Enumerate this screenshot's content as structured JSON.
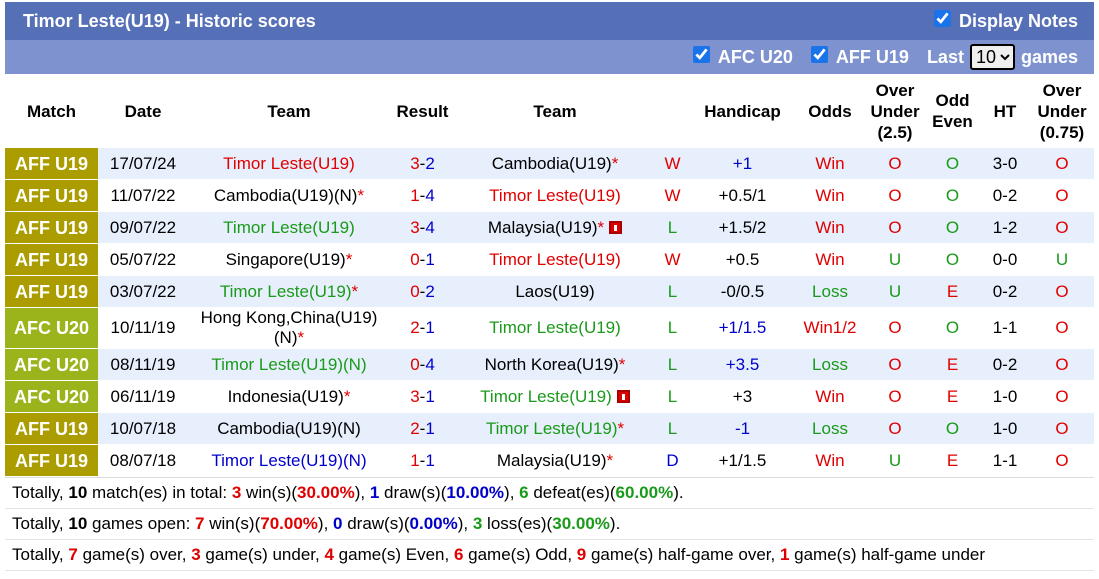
{
  "header": {
    "title": "Timor Leste(U19) - Historic scores",
    "display_notes": "Display Notes",
    "display_notes_checked": true,
    "filters": [
      {
        "label": "AFC U20",
        "checked": true
      },
      {
        "label": "AFF U19",
        "checked": true
      }
    ],
    "last": "Last",
    "games_selected": "10",
    "games": "games"
  },
  "table": {
    "columns": [
      "Match",
      "Date",
      "Team",
      "Result",
      "Team",
      "Handicap",
      "Odds",
      "Over Under (2.5)",
      "Odd Even",
      "HT",
      "Over Under (0.75)"
    ],
    "rows": [
      {
        "match": "AFF U19",
        "match_bg": "#ab9d00",
        "date": "17/07/24",
        "home": "Timor Leste(U19)",
        "home_color": "#e00000",
        "home_score": 3,
        "away_score": 2,
        "away": "Cambodia(U19)",
        "away_color": "#000000",
        "away_mark": "*",
        "outcome": "W",
        "outcome_color": "#e00000",
        "handicap": "+1",
        "handicap_color": "#0000cc",
        "odds": "Win",
        "odds_color": "#e00000",
        "ou": "O",
        "ou_color": "#e00000",
        "oe": "O",
        "oe_color": "#1a9a1a",
        "ht": "3-0",
        "ou2": "O",
        "ou2_color": "#e00000"
      },
      {
        "match": "AFF U19",
        "match_bg": "#ab9d00",
        "date": "11/07/22",
        "home": "Cambodia(U19)(N)",
        "home_color": "#000000",
        "home_mark": "*",
        "home_score": 1,
        "away_score": 4,
        "away": "Timor Leste(U19)",
        "away_color": "#e00000",
        "outcome": "W",
        "outcome_color": "#e00000",
        "handicap": "+0.5/1",
        "handicap_color": "#000000",
        "odds": "Win",
        "odds_color": "#e00000",
        "ou": "O",
        "ou_color": "#e00000",
        "oe": "O",
        "oe_color": "#1a9a1a",
        "ht": "0-2",
        "ou2": "O",
        "ou2_color": "#e00000"
      },
      {
        "match": "AFF U19",
        "match_bg": "#ab9d00",
        "date": "09/07/22",
        "home": "Timor Leste(U19)",
        "home_color": "#1a9a1a",
        "home_score": 3,
        "away_score": 4,
        "away": "Malaysia(U19)",
        "away_color": "#000000",
        "away_mark": "*",
        "away_card": true,
        "outcome": "L",
        "outcome_color": "#1a9a1a",
        "handicap": "+1.5/2",
        "handicap_color": "#000000",
        "odds": "Win",
        "odds_color": "#e00000",
        "ou": "O",
        "ou_color": "#e00000",
        "oe": "O",
        "oe_color": "#1a9a1a",
        "ht": "1-2",
        "ou2": "O",
        "ou2_color": "#e00000"
      },
      {
        "match": "AFF U19",
        "match_bg": "#ab9d00",
        "date": "05/07/22",
        "home": "Singapore(U19)",
        "home_color": "#000000",
        "home_mark": "*",
        "home_score": 0,
        "away_score": 1,
        "away": "Timor Leste(U19)",
        "away_color": "#e00000",
        "outcome": "W",
        "outcome_color": "#e00000",
        "handicap": "+0.5",
        "handicap_color": "#000000",
        "odds": "Win",
        "odds_color": "#e00000",
        "ou": "U",
        "ou_color": "#1a9a1a",
        "oe": "O",
        "oe_color": "#1a9a1a",
        "ht": "0-0",
        "ou2": "U",
        "ou2_color": "#1a9a1a"
      },
      {
        "match": "AFF U19",
        "match_bg": "#ab9d00",
        "date": "03/07/22",
        "home": "Timor Leste(U19)",
        "home_color": "#1a9a1a",
        "home_mark": "*",
        "home_score": 0,
        "away_score": 2,
        "away": "Laos(U19)",
        "away_color": "#000000",
        "outcome": "L",
        "outcome_color": "#1a9a1a",
        "handicap": "-0/0.5",
        "handicap_color": "#000000",
        "odds": "Loss",
        "odds_color": "#1a9a1a",
        "ou": "U",
        "ou_color": "#1a9a1a",
        "oe": "E",
        "oe_color": "#e00000",
        "ht": "0-2",
        "ou2": "O",
        "ou2_color": "#e00000"
      },
      {
        "match": "AFC U20",
        "match_bg": "#9cb41c",
        "date": "10/11/19",
        "home": "Hong Kong,China(U19)(N)",
        "home_color": "#000000",
        "home_mark": "*",
        "home_score": 2,
        "away_score": 1,
        "away": "Timor Leste(U19)",
        "away_color": "#1a9a1a",
        "outcome": "L",
        "outcome_color": "#1a9a1a",
        "handicap": "+1/1.5",
        "handicap_color": "#0000cc",
        "odds": "Win1/2",
        "odds_color": "#e00000",
        "ou": "O",
        "ou_color": "#e00000",
        "oe": "O",
        "oe_color": "#1a9a1a",
        "ht": "1-1",
        "ou2": "O",
        "ou2_color": "#e00000"
      },
      {
        "match": "AFC U20",
        "match_bg": "#9cb41c",
        "date": "08/11/19",
        "home": "Timor Leste(U19)(N)",
        "home_color": "#1a9a1a",
        "home_score": 0,
        "away_score": 4,
        "away": "North Korea(U19)",
        "away_color": "#000000",
        "away_mark": "*",
        "outcome": "L",
        "outcome_color": "#1a9a1a",
        "handicap": "+3.5",
        "handicap_color": "#0000cc",
        "odds": "Loss",
        "odds_color": "#1a9a1a",
        "ou": "O",
        "ou_color": "#e00000",
        "oe": "E",
        "oe_color": "#e00000",
        "ht": "0-2",
        "ou2": "O",
        "ou2_color": "#e00000"
      },
      {
        "match": "AFC U20",
        "match_bg": "#9cb41c",
        "date": "06/11/19",
        "home": "Indonesia(U19)",
        "home_color": "#000000",
        "home_mark": "*",
        "home_score": 3,
        "away_score": 1,
        "away": "Timor Leste(U19)",
        "away_color": "#1a9a1a",
        "away_card": true,
        "outcome": "L",
        "outcome_color": "#1a9a1a",
        "handicap": "+3",
        "handicap_color": "#000000",
        "odds": "Win",
        "odds_color": "#e00000",
        "ou": "O",
        "ou_color": "#e00000",
        "oe": "E",
        "oe_color": "#e00000",
        "ht": "1-0",
        "ou2": "O",
        "ou2_color": "#e00000"
      },
      {
        "match": "AFF U19",
        "match_bg": "#ab9d00",
        "date": "10/07/18",
        "home": "Cambodia(U19)(N)",
        "home_color": "#000000",
        "home_score": 2,
        "away_score": 1,
        "away": "Timor Leste(U19)",
        "away_color": "#1a9a1a",
        "away_mark": "*",
        "outcome": "L",
        "outcome_color": "#1a9a1a",
        "handicap": "-1",
        "handicap_color": "#0000cc",
        "odds": "Loss",
        "odds_color": "#1a9a1a",
        "ou": "O",
        "ou_color": "#e00000",
        "oe": "O",
        "oe_color": "#1a9a1a",
        "ht": "1-0",
        "ou2": "O",
        "ou2_color": "#e00000"
      },
      {
        "match": "AFF U19",
        "match_bg": "#ab9d00",
        "date": "08/07/18",
        "home": "Timor Leste(U19)(N)",
        "home_color": "#0000cc",
        "home_score": 1,
        "away_score": 1,
        "away": "Malaysia(U19)",
        "away_color": "#000000",
        "away_mark": "*",
        "outcome": "D",
        "outcome_color": "#0000cc",
        "handicap": "+1/1.5",
        "handicap_color": "#000000",
        "odds": "Win",
        "odds_color": "#e00000",
        "ou": "U",
        "ou_color": "#1a9a1a",
        "oe": "E",
        "oe_color": "#e00000",
        "ht": "1-1",
        "ou2": "O",
        "ou2_color": "#e00000"
      }
    ]
  },
  "summary": [
    [
      {
        "text": "Totally, "
      },
      {
        "text": "10",
        "bold": true
      },
      {
        "text": " match(es) in total: "
      },
      {
        "text": "3",
        "bold": true,
        "color": "#e00000"
      },
      {
        "text": " win(s)("
      },
      {
        "text": "30.00%",
        "bold": true,
        "color": "#e00000"
      },
      {
        "text": "), "
      },
      {
        "text": "1",
        "bold": true,
        "color": "#0000cc"
      },
      {
        "text": " draw(s)("
      },
      {
        "text": "10.00%",
        "bold": true,
        "color": "#0000cc"
      },
      {
        "text": "), "
      },
      {
        "text": "6",
        "bold": true,
        "color": "#1a9a1a"
      },
      {
        "text": " defeat(es)("
      },
      {
        "text": "60.00%",
        "bold": true,
        "color": "#1a9a1a"
      },
      {
        "text": ")."
      }
    ],
    [
      {
        "text": "Totally, "
      },
      {
        "text": "10",
        "bold": true
      },
      {
        "text": " games open: "
      },
      {
        "text": "7",
        "bold": true,
        "color": "#e00000"
      },
      {
        "text": " win(s)("
      },
      {
        "text": "70.00%",
        "bold": true,
        "color": "#e00000"
      },
      {
        "text": "), "
      },
      {
        "text": "0",
        "bold": true,
        "color": "#0000cc"
      },
      {
        "text": " draw(s)("
      },
      {
        "text": "0.00%",
        "bold": true,
        "color": "#0000cc"
      },
      {
        "text": "), "
      },
      {
        "text": "3",
        "bold": true,
        "color": "#1a9a1a"
      },
      {
        "text": " loss(es)("
      },
      {
        "text": "30.00%",
        "bold": true,
        "color": "#1a9a1a"
      },
      {
        "text": ")."
      }
    ],
    [
      {
        "text": "Totally, "
      },
      {
        "text": "7",
        "bold": true,
        "color": "#e00000"
      },
      {
        "text": " game(s) over, "
      },
      {
        "text": "3",
        "bold": true,
        "color": "#e00000"
      },
      {
        "text": " game(s) under, "
      },
      {
        "text": "4",
        "bold": true,
        "color": "#e00000"
      },
      {
        "text": " game(s) Even, "
      },
      {
        "text": "6",
        "bold": true,
        "color": "#e00000"
      },
      {
        "text": " game(s) Odd, "
      },
      {
        "text": "9",
        "bold": true,
        "color": "#e00000"
      },
      {
        "text": " game(s) half-game over, "
      },
      {
        "text": "1",
        "bold": true,
        "color": "#e00000"
      },
      {
        "text": " game(s) half-game under"
      }
    ]
  ]
}
